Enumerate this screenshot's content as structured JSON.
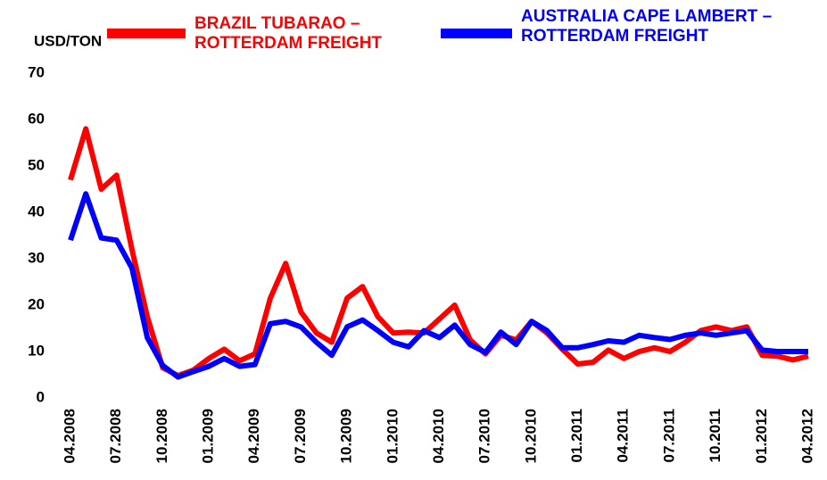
{
  "chart_data": {
    "type": "line",
    "y_axis_label": "USD/TON",
    "categories": [
      "04.2008",
      null,
      null,
      "07.2008",
      null,
      null,
      "10.2008",
      null,
      null,
      "01.2009",
      null,
      null,
      "04.2009",
      null,
      null,
      "07.2009",
      null,
      null,
      "10.2009",
      null,
      null,
      "01.2010",
      null,
      null,
      "04.2010",
      null,
      null,
      "07.2010",
      null,
      null,
      "10.2010",
      null,
      null,
      "01.2011",
      null,
      null,
      "04.2011",
      null,
      null,
      "07.2011",
      null,
      null,
      "10.2011",
      null,
      null,
      "01.2012",
      null,
      null,
      "04.2012"
    ],
    "series": [
      {
        "name": "BRAZIL TUBARAO – ROTTERDAM FREIGHT",
        "color": "#ff0000",
        "values": [
          47,
          58,
          45,
          48,
          32,
          17.5,
          6.5,
          4.8,
          6,
          8.5,
          10.5,
          8,
          9.5,
          21.5,
          29,
          18.5,
          14,
          12,
          21.5,
          24,
          17.5,
          14,
          14.2,
          14,
          17,
          20,
          12.5,
          9.5,
          13.5,
          12.5,
          16.5,
          14,
          10.5,
          7.3,
          7.7,
          10.3,
          8.5,
          10,
          10.8,
          10,
          12,
          14.5,
          15.3,
          14.5,
          15.3,
          9.2,
          9,
          8.2,
          9
        ]
      },
      {
        "name": "AUSTRALIA CAPE LAMBERT – ROTTERDAM FREIGHT",
        "color": "#0000ff",
        "values": [
          34,
          44,
          34.5,
          34,
          28,
          13,
          7,
          4.5,
          5.7,
          6.8,
          8.5,
          6.8,
          7.2,
          16,
          16.5,
          15.3,
          12,
          9.2,
          15.3,
          16.8,
          14.5,
          12,
          11,
          14.5,
          13,
          15.7,
          11.5,
          9.8,
          14.2,
          11.5,
          16.5,
          14.5,
          10.8,
          10.8,
          11.5,
          12.3,
          12,
          13.5,
          13,
          12.6,
          13.5,
          14,
          13.5,
          14,
          14.5,
          10.3,
          10,
          10,
          10
        ]
      }
    ],
    "ylim": [
      0,
      70
    ],
    "yticks": [
      0,
      10,
      20,
      30,
      40,
      50,
      60,
      70
    ],
    "grid": false
  }
}
